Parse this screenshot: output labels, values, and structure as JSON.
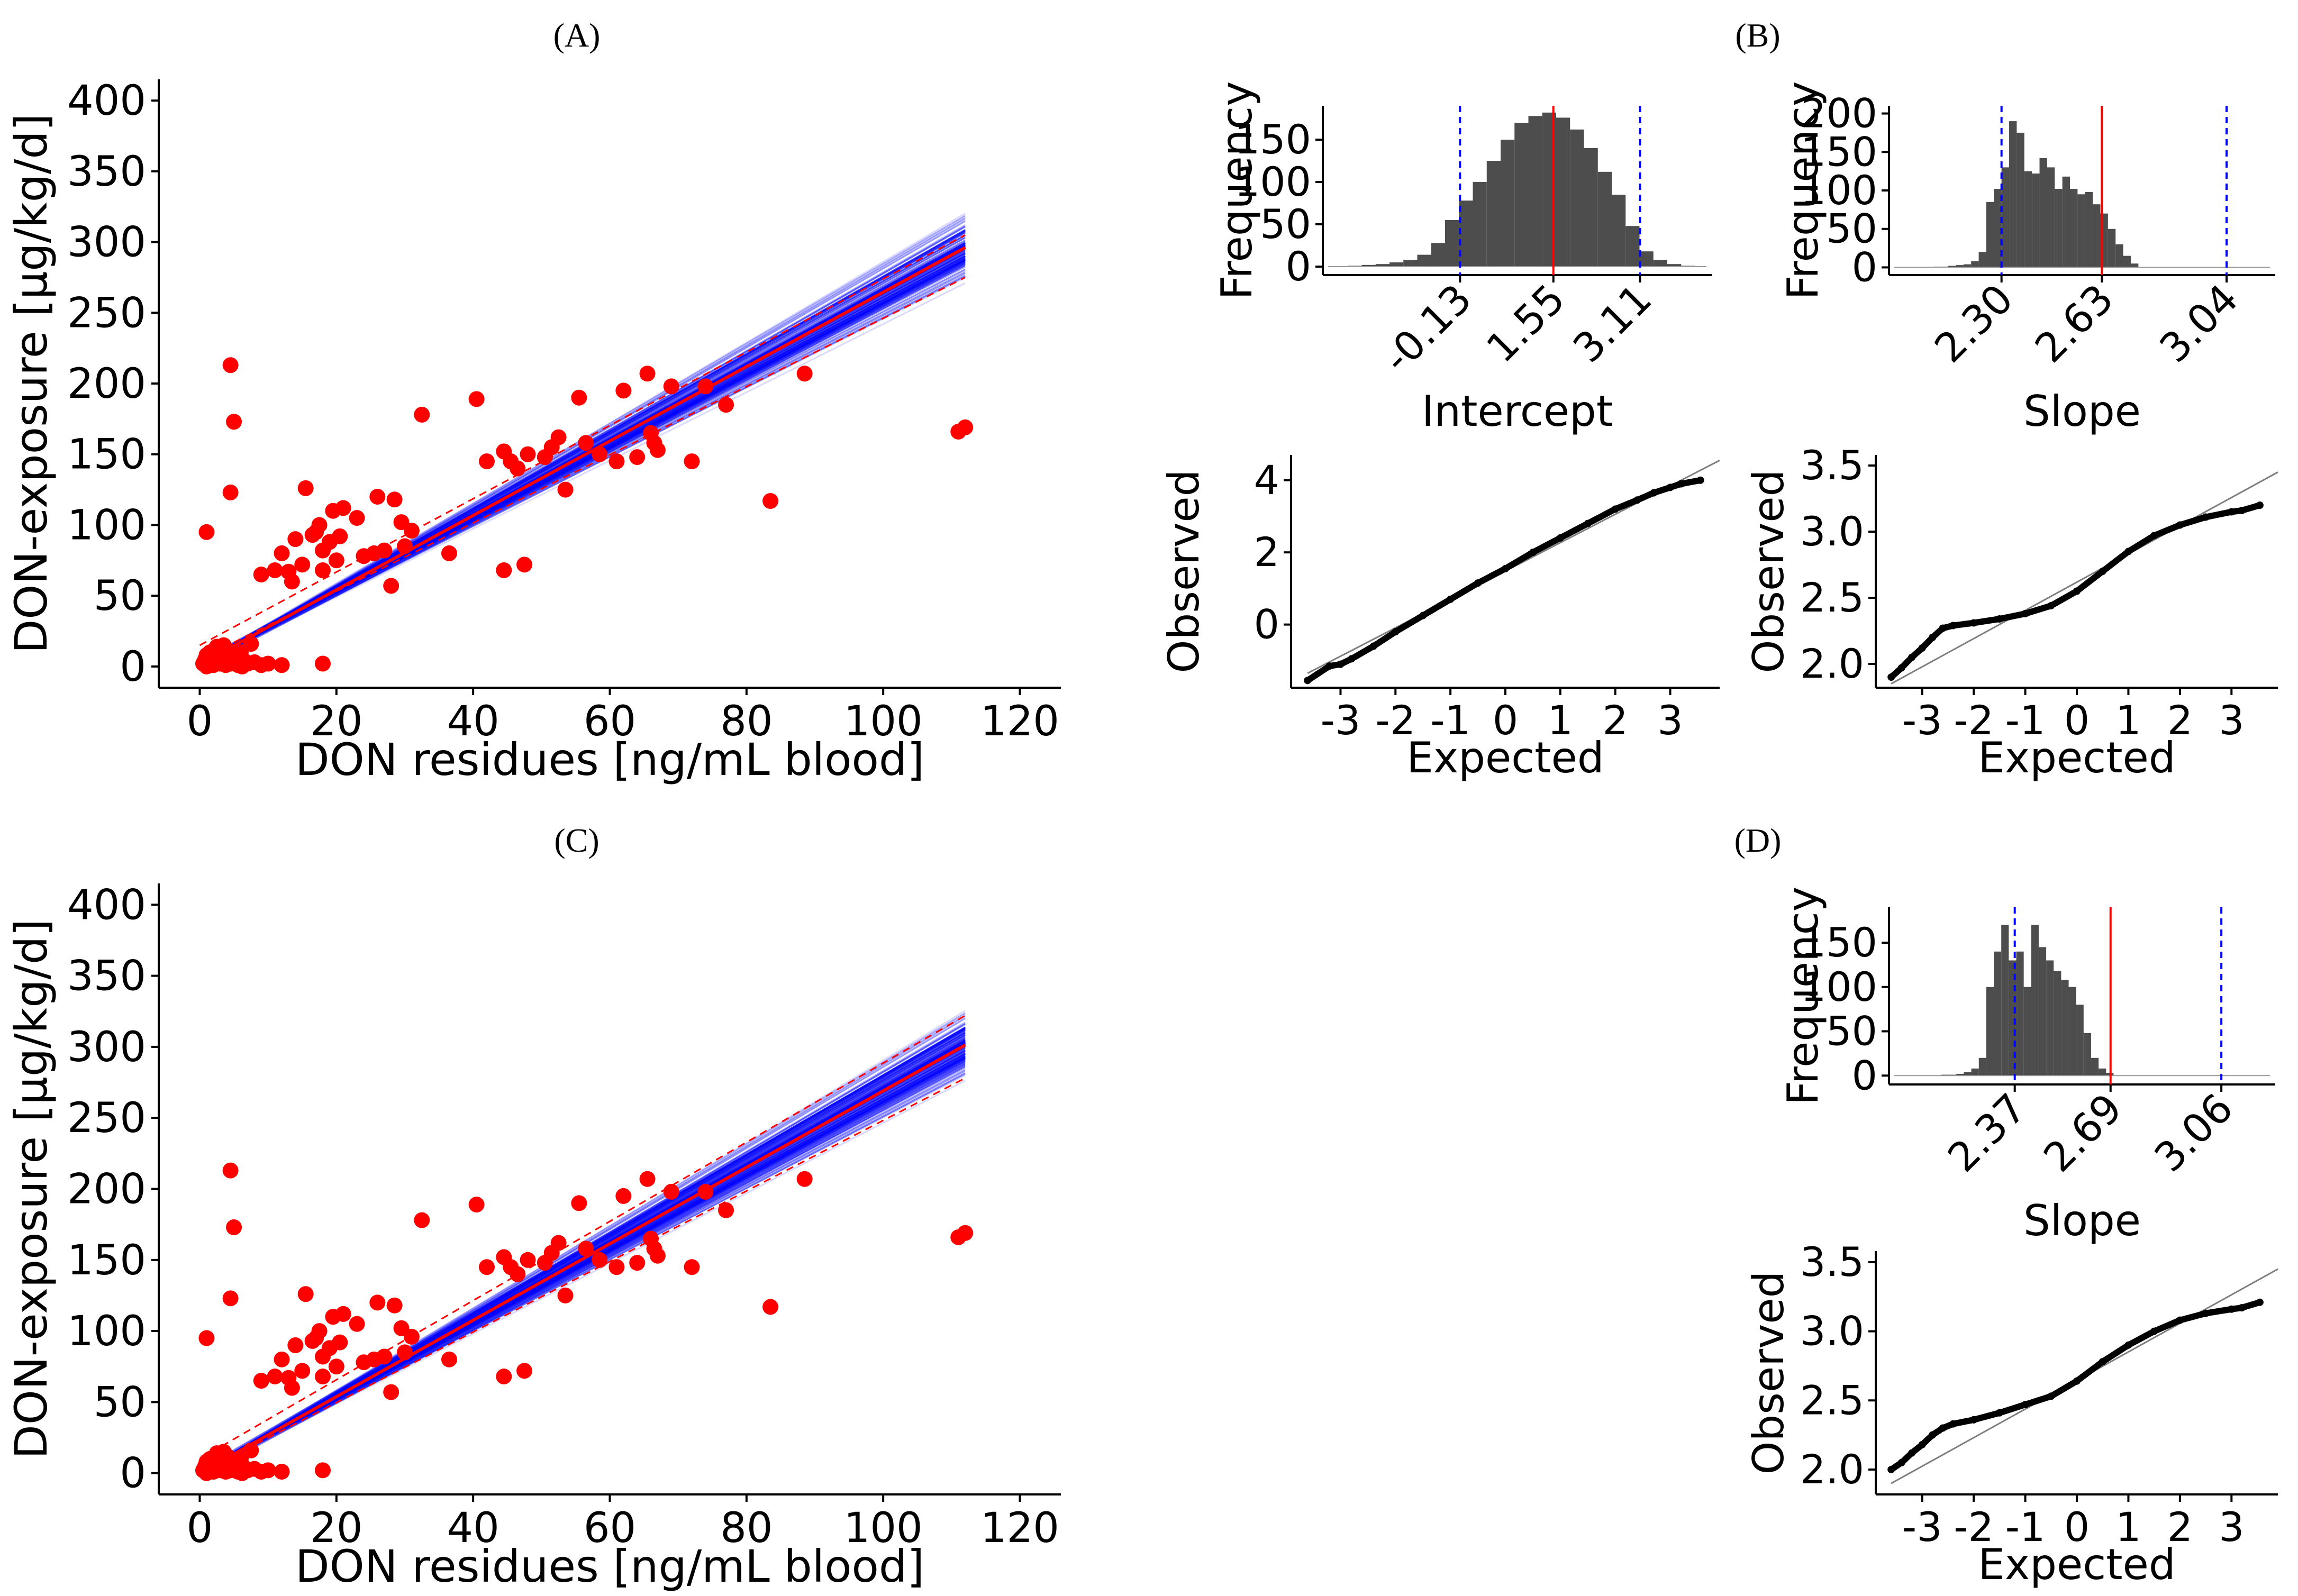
{
  "panel_labels": [
    "(A)",
    "(B)",
    "(C)",
    "(D)"
  ],
  "colors": {
    "points": "#ff0000",
    "fit_line": "#ff0000",
    "posterior_lines": "#0000ff",
    "histogram_bars": "#4d4d4d",
    "ci_lines": "#0000ff",
    "median_line": "#ff0000",
    "qq_points": "#000000",
    "qq_reference": "#7f7f7f"
  },
  "chart_data": [
    {
      "id": "A",
      "type": "scatter",
      "xlabel": "DON residues [ng/mL blood]",
      "ylabel": "DON-exposure [µg/kg/d]",
      "xlim": [
        -6,
        126
      ],
      "ylim": [
        -15,
        415
      ],
      "xticks": [
        0,
        20,
        40,
        60,
        80,
        100,
        120
      ],
      "yticks": [
        0,
        50,
        100,
        150,
        200,
        250,
        300,
        350,
        400
      ],
      "grid": false,
      "fit": {
        "intercept": 1.55,
        "slope": 2.63,
        "x_range": [
          0,
          112
        ]
      },
      "band": {
        "lower": {
          "y0": 5,
          "y1": 275
        },
        "upper": {
          "y0": 15,
          "y1": 305
        }
      },
      "points": [
        [
          1,
          95
        ],
        [
          4.5,
          213
        ],
        [
          5,
          173
        ],
        [
          4.5,
          123
        ],
        [
          9,
          65
        ],
        [
          11,
          68
        ],
        [
          12,
          80
        ],
        [
          13,
          67
        ],
        [
          13.5,
          60
        ],
        [
          14,
          90
        ],
        [
          15,
          72
        ],
        [
          15.5,
          126
        ],
        [
          16.5,
          93
        ],
        [
          17,
          95
        ],
        [
          17.5,
          100
        ],
        [
          18,
          82
        ],
        [
          18,
          68
        ],
        [
          19,
          88
        ],
        [
          19.5,
          110
        ],
        [
          20,
          75
        ],
        [
          20.5,
          92
        ],
        [
          21,
          112
        ],
        [
          23,
          105
        ],
        [
          24,
          78
        ],
        [
          25.5,
          80
        ],
        [
          26,
          120
        ],
        [
          27,
          82
        ],
        [
          28,
          57
        ],
        [
          28.5,
          118
        ],
        [
          29.5,
          102
        ],
        [
          30,
          85
        ],
        [
          31,
          96
        ],
        [
          32.5,
          178
        ],
        [
          36.5,
          80
        ],
        [
          40.5,
          189
        ],
        [
          42,
          145
        ],
        [
          44.5,
          68
        ],
        [
          44.5,
          152
        ],
        [
          45.5,
          145
        ],
        [
          46.5,
          140
        ],
        [
          47.5,
          72
        ],
        [
          48,
          150
        ],
        [
          50.5,
          148
        ],
        [
          51.5,
          155
        ],
        [
          52.5,
          162
        ],
        [
          53.5,
          125
        ],
        [
          55.5,
          190
        ],
        [
          56.5,
          158
        ],
        [
          58.5,
          150
        ],
        [
          61,
          145
        ],
        [
          62,
          195
        ],
        [
          64,
          148
        ],
        [
          65.5,
          207
        ],
        [
          66,
          165
        ],
        [
          66.5,
          158
        ],
        [
          67,
          153
        ],
        [
          69,
          198
        ],
        [
          72,
          145
        ],
        [
          74,
          198
        ],
        [
          77,
          185
        ],
        [
          83.5,
          117
        ],
        [
          88.5,
          207
        ],
        [
          111,
          166
        ],
        [
          112,
          169
        ],
        [
          0.5,
          2
        ],
        [
          0.8,
          5
        ],
        [
          1,
          8
        ],
        [
          1.2,
          3
        ],
        [
          1.5,
          10
        ],
        [
          1.8,
          4
        ],
        [
          2,
          1
        ],
        [
          2.2,
          6
        ],
        [
          2.5,
          3
        ],
        [
          2.8,
          9
        ],
        [
          3,
          2
        ],
        [
          3.2,
          5
        ],
        [
          3.5,
          7
        ],
        [
          3.8,
          1
        ],
        [
          4,
          12
        ],
        [
          4.2,
          4
        ],
        [
          4.5,
          2
        ],
        [
          4.8,
          8
        ],
        [
          5,
          3
        ],
        [
          5.3,
          6
        ],
        [
          5.6,
          1
        ],
        [
          6,
          10
        ],
        [
          6.5,
          4
        ],
        [
          7,
          2
        ],
        [
          7.5,
          16
        ],
        [
          8,
          3
        ],
        [
          9,
          1
        ],
        [
          10,
          2
        ],
        [
          12,
          1
        ],
        [
          18,
          2
        ],
        [
          2.5,
          14
        ],
        [
          3.5,
          15
        ],
        [
          1,
          0
        ],
        [
          6.2,
          0
        ]
      ]
    },
    {
      "id": "B1",
      "type": "bar",
      "xlabel": "Intercept",
      "ylabel": "Frequency",
      "ylim": [
        -10,
        190
      ],
      "yticks": [
        0,
        50,
        100,
        150
      ],
      "tick_labels": [
        "-0.13",
        "1.55",
        "3.11"
      ],
      "bin_start": -2.15,
      "bin_width": 0.25,
      "counts": [
        1,
        2,
        3,
        5,
        8,
        14,
        28,
        55,
        78,
        100,
        125,
        150,
        170,
        178,
        182,
        176,
        162,
        140,
        112,
        85,
        48,
        18,
        8,
        3,
        1
      ],
      "ci": [
        -0.13,
        3.11
      ],
      "median": 1.55,
      "xlim": [
        -2.6,
        4.4
      ]
    },
    {
      "id": "B2",
      "type": "bar",
      "xlabel": "Slope",
      "ylabel": "Frequency",
      "ylim": [
        -10,
        210
      ],
      "yticks": [
        0,
        50,
        100,
        150,
        200
      ],
      "tick_labels": [
        "2.30",
        "2.63",
        "3.04"
      ],
      "bin_start": 2.075,
      "bin_width": 0.025,
      "counts": [
        1,
        1,
        2,
        3,
        4,
        8,
        20,
        85,
        102,
        130,
        190,
        175,
        125,
        122,
        142,
        130,
        102,
        118,
        102,
        95,
        98,
        82,
        70,
        50,
        30,
        15,
        5
      ],
      "ci": [
        2.3,
        3.04
      ],
      "median": 2.63,
      "xlim": [
        1.93,
        3.2
      ]
    },
    {
      "id": "B3",
      "type": "scatter",
      "xlabel": "Expected",
      "ylabel": "Observed",
      "xlim": [
        -3.9,
        3.9
      ],
      "ylim": [
        -1.75,
        4.7
      ],
      "xticks": [
        -3,
        -2,
        -1,
        0,
        1,
        2,
        3
      ],
      "yticks": [
        0,
        2,
        4
      ],
      "reference": {
        "x": [
          -3.6,
          3.9
        ],
        "y": [
          -1.35,
          4.55
        ]
      },
      "qq_points": [
        [
          -3.6,
          -1.55
        ],
        [
          -3.2,
          -1.15
        ],
        [
          -3.0,
          -1.1
        ],
        [
          -2.8,
          -0.95
        ],
        [
          -2.4,
          -0.6
        ],
        [
          -2.0,
          -0.2
        ],
        [
          -1.5,
          0.25
        ],
        [
          -1.0,
          0.7
        ],
        [
          -0.5,
          1.15
        ],
        [
          0.0,
          1.55
        ],
        [
          0.5,
          2.0
        ],
        [
          1.0,
          2.4
        ],
        [
          1.5,
          2.8
        ],
        [
          2.0,
          3.2
        ],
        [
          2.4,
          3.45
        ],
        [
          2.7,
          3.65
        ],
        [
          3.0,
          3.8
        ],
        [
          3.2,
          3.9
        ],
        [
          3.55,
          4.0
        ]
      ]
    },
    {
      "id": "B4",
      "type": "scatter",
      "xlabel": "Expected",
      "ylabel": "Observed",
      "xlim": [
        -3.9,
        3.9
      ],
      "ylim": [
        1.82,
        3.58
      ],
      "xticks": [
        -3,
        -2,
        -1,
        0,
        1,
        2,
        3
      ],
      "yticks": [
        2.0,
        2.5,
        3.0,
        3.5
      ],
      "reference": {
        "x": [
          -3.6,
          3.9
        ],
        "y": [
          1.85,
          3.45
        ]
      },
      "qq_points": [
        [
          -3.6,
          1.9
        ],
        [
          -3.4,
          1.97
        ],
        [
          -3.2,
          2.05
        ],
        [
          -3.0,
          2.12
        ],
        [
          -2.8,
          2.2
        ],
        [
          -2.6,
          2.27
        ],
        [
          -2.4,
          2.29
        ],
        [
          -2.0,
          2.31
        ],
        [
          -1.5,
          2.34
        ],
        [
          -1.0,
          2.38
        ],
        [
          -0.5,
          2.44
        ],
        [
          0.0,
          2.55
        ],
        [
          0.5,
          2.7
        ],
        [
          1.0,
          2.85
        ],
        [
          1.5,
          2.97
        ],
        [
          2.0,
          3.05
        ],
        [
          2.5,
          3.11
        ],
        [
          3.0,
          3.15
        ],
        [
          3.2,
          3.16
        ],
        [
          3.55,
          3.2
        ]
      ]
    },
    {
      "id": "C",
      "type": "scatter",
      "xlabel": "DON residues [ng/mL blood]",
      "ylabel": "DON-exposure [µg/kg/d]",
      "xlim": [
        -6,
        126
      ],
      "ylim": [
        -15,
        415
      ],
      "xticks": [
        0,
        20,
        40,
        60,
        80,
        100,
        120
      ],
      "yticks": [
        0,
        50,
        100,
        150,
        200,
        250,
        300,
        350,
        400
      ],
      "grid": false,
      "fit": {
        "intercept": 0,
        "slope": 2.69,
        "x_range": [
          0,
          112
        ]
      },
      "band": {
        "lower": {
          "y0": 0,
          "y1": 278
        },
        "upper": {
          "y0": 10,
          "y1": 322
        }
      },
      "points": [
        [
          1,
          95
        ],
        [
          4.5,
          213
        ],
        [
          5,
          173
        ],
        [
          4.5,
          123
        ],
        [
          9,
          65
        ],
        [
          11,
          68
        ],
        [
          12,
          80
        ],
        [
          13,
          67
        ],
        [
          13.5,
          60
        ],
        [
          14,
          90
        ],
        [
          15,
          72
        ],
        [
          15.5,
          126
        ],
        [
          16.5,
          93
        ],
        [
          17,
          95
        ],
        [
          17.5,
          100
        ],
        [
          18,
          82
        ],
        [
          18,
          68
        ],
        [
          19,
          88
        ],
        [
          19.5,
          110
        ],
        [
          20,
          75
        ],
        [
          20.5,
          92
        ],
        [
          21,
          112
        ],
        [
          23,
          105
        ],
        [
          24,
          78
        ],
        [
          25.5,
          80
        ],
        [
          26,
          120
        ],
        [
          27,
          82
        ],
        [
          28,
          57
        ],
        [
          28.5,
          118
        ],
        [
          29.5,
          102
        ],
        [
          30,
          85
        ],
        [
          31,
          96
        ],
        [
          32.5,
          178
        ],
        [
          36.5,
          80
        ],
        [
          40.5,
          189
        ],
        [
          42,
          145
        ],
        [
          44.5,
          68
        ],
        [
          44.5,
          152
        ],
        [
          45.5,
          145
        ],
        [
          46.5,
          140
        ],
        [
          47.5,
          72
        ],
        [
          48,
          150
        ],
        [
          50.5,
          148
        ],
        [
          51.5,
          155
        ],
        [
          52.5,
          162
        ],
        [
          53.5,
          125
        ],
        [
          55.5,
          190
        ],
        [
          56.5,
          158
        ],
        [
          58.5,
          150
        ],
        [
          61,
          145
        ],
        [
          62,
          195
        ],
        [
          64,
          148
        ],
        [
          65.5,
          207
        ],
        [
          66,
          165
        ],
        [
          66.5,
          158
        ],
        [
          67,
          153
        ],
        [
          69,
          198
        ],
        [
          72,
          145
        ],
        [
          74,
          198
        ],
        [
          77,
          185
        ],
        [
          83.5,
          117
        ],
        [
          88.5,
          207
        ],
        [
          111,
          166
        ],
        [
          112,
          169
        ],
        [
          0.5,
          2
        ],
        [
          0.8,
          5
        ],
        [
          1,
          8
        ],
        [
          1.2,
          3
        ],
        [
          1.5,
          10
        ],
        [
          1.8,
          4
        ],
        [
          2,
          1
        ],
        [
          2.2,
          6
        ],
        [
          2.5,
          3
        ],
        [
          2.8,
          9
        ],
        [
          3,
          2
        ],
        [
          3.2,
          5
        ],
        [
          3.5,
          7
        ],
        [
          3.8,
          1
        ],
        [
          4,
          12
        ],
        [
          4.2,
          4
        ],
        [
          4.5,
          2
        ],
        [
          4.8,
          8
        ],
        [
          5,
          3
        ],
        [
          5.3,
          6
        ],
        [
          5.6,
          1
        ],
        [
          6,
          10
        ],
        [
          6.5,
          4
        ],
        [
          7,
          2
        ],
        [
          7.5,
          16
        ],
        [
          8,
          3
        ],
        [
          9,
          1
        ],
        [
          10,
          2
        ],
        [
          12,
          1
        ],
        [
          18,
          2
        ],
        [
          2.5,
          14
        ],
        [
          3.5,
          15
        ],
        [
          1,
          0
        ],
        [
          6.2,
          0
        ]
      ]
    },
    {
      "id": "D1",
      "type": "bar",
      "xlabel": "Slope",
      "ylabel": "Frequency",
      "ylim": [
        -10,
        190
      ],
      "yticks": [
        0,
        50,
        100,
        150
      ],
      "tick_labels": [
        "2.37",
        "2.69",
        "3.06"
      ],
      "bin_start": 2.125,
      "bin_width": 0.025,
      "counts": [
        1,
        1,
        2,
        4,
        8,
        20,
        100,
        140,
        170,
        130,
        140,
        100,
        170,
        145,
        130,
        118,
        108,
        100,
        80,
        48,
        20,
        8,
        3
      ],
      "ci": [
        2.37,
        3.06
      ],
      "median": 2.69,
      "xlim": [
        1.95,
        3.24
      ]
    },
    {
      "id": "D2",
      "type": "scatter",
      "xlabel": "Expected",
      "ylabel": "Observed",
      "xlim": [
        -3.9,
        3.9
      ],
      "ylim": [
        1.82,
        3.58
      ],
      "xticks": [
        -3,
        -2,
        -1,
        0,
        1,
        2,
        3
      ],
      "yticks": [
        2.0,
        2.5,
        3.0,
        3.5
      ],
      "reference": {
        "x": [
          -3.6,
          3.9
        ],
        "y": [
          1.9,
          3.45
        ]
      },
      "qq_points": [
        [
          -3.6,
          2.0
        ],
        [
          -3.4,
          2.05
        ],
        [
          -3.2,
          2.12
        ],
        [
          -3.0,
          2.18
        ],
        [
          -2.8,
          2.25
        ],
        [
          -2.6,
          2.3
        ],
        [
          -2.4,
          2.33
        ],
        [
          -2.0,
          2.36
        ],
        [
          -1.5,
          2.41
        ],
        [
          -1.0,
          2.47
        ],
        [
          -0.5,
          2.53
        ],
        [
          0.0,
          2.64
        ],
        [
          0.5,
          2.78
        ],
        [
          1.0,
          2.9
        ],
        [
          1.5,
          3.0
        ],
        [
          2.0,
          3.08
        ],
        [
          2.5,
          3.13
        ],
        [
          3.0,
          3.16
        ],
        [
          3.2,
          3.17
        ],
        [
          3.55,
          3.21
        ]
      ]
    }
  ]
}
